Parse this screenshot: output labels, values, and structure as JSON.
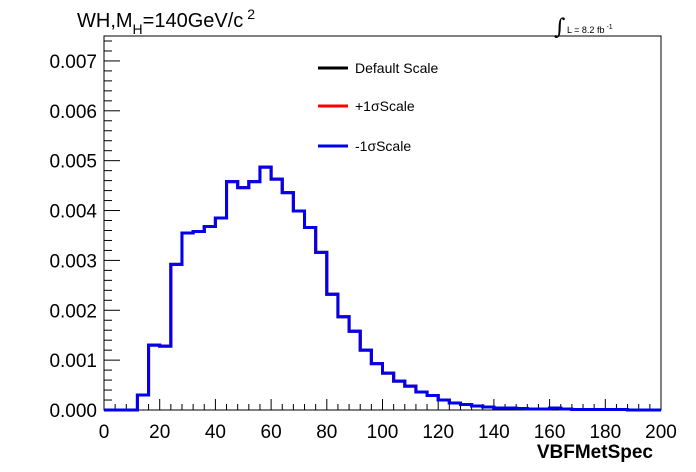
{
  "chart_data": {
    "type": "histogram",
    "title": {
      "main": "WH,M",
      "sub": "H",
      "rest": "=140GeV/c",
      "sup": "2"
    },
    "lumi": {
      "integral": "∫",
      "text": "L = 8.2 fb",
      "sup": "-1"
    },
    "xlabel": "VBFMetSpec",
    "ylabel": "",
    "xlim": [
      0,
      200
    ],
    "ylim": [
      0,
      0.0075
    ],
    "bin_width": 4,
    "x_ticks": [
      "0",
      "20",
      "40",
      "60",
      "80",
      "100",
      "120",
      "140",
      "160",
      "180",
      "200"
    ],
    "y_ticks": [
      "0.000",
      "0.001",
      "0.002",
      "0.003",
      "0.004",
      "0.005",
      "0.006",
      "0.007"
    ],
    "legend_position": "top-center",
    "series": [
      {
        "name": "Default Scale",
        "color": "#000000",
        "values": [
          0,
          0,
          0,
          0.0003,
          0.0013,
          0.00128,
          0.00292,
          0.00355,
          0.00358,
          0.00368,
          0.00385,
          0.00458,
          0.00446,
          0.00458,
          0.00487,
          0.00463,
          0.00436,
          0.00399,
          0.00366,
          0.00316,
          0.00232,
          0.00187,
          0.00158,
          0.0012,
          0.00093,
          0.00074,
          0.00058,
          0.00048,
          0.00036,
          0.00029,
          0.0002,
          0.00014,
          0.00011,
          8e-05,
          6e-05,
          4e-05,
          4e-05,
          3e-05,
          2e-05,
          2e-05,
          4e-05,
          2e-05,
          1e-05,
          1e-05,
          1e-05,
          1e-05,
          1e-05,
          0,
          0,
          0
        ]
      },
      {
        "name": "+1σScale",
        "color": "#ff0000",
        "values": [
          0,
          0,
          0,
          0.0003,
          0.0013,
          0.00128,
          0.00292,
          0.00355,
          0.00358,
          0.00368,
          0.00385,
          0.00458,
          0.00446,
          0.00458,
          0.00487,
          0.00463,
          0.00436,
          0.00399,
          0.00366,
          0.00316,
          0.00232,
          0.00187,
          0.00158,
          0.0012,
          0.00093,
          0.00074,
          0.00058,
          0.00048,
          0.00036,
          0.00029,
          0.0002,
          0.00014,
          0.00011,
          8e-05,
          6e-05,
          4e-05,
          4e-05,
          3e-05,
          2e-05,
          2e-05,
          4e-05,
          2e-05,
          1e-05,
          1e-05,
          1e-05,
          1e-05,
          1e-05,
          0,
          0,
          0
        ]
      },
      {
        "name": "-1σScale",
        "color": "#0000ee",
        "values": [
          0,
          0,
          0,
          0.0003,
          0.0013,
          0.00128,
          0.00292,
          0.00355,
          0.00358,
          0.00368,
          0.00385,
          0.00458,
          0.00446,
          0.00458,
          0.00487,
          0.00463,
          0.00436,
          0.00399,
          0.00366,
          0.00316,
          0.00232,
          0.00187,
          0.00158,
          0.0012,
          0.00093,
          0.00074,
          0.00058,
          0.00048,
          0.00036,
          0.00029,
          0.0002,
          0.00014,
          0.00011,
          8e-05,
          6e-05,
          4e-05,
          4e-05,
          3e-05,
          2e-05,
          2e-05,
          4e-05,
          2e-05,
          1e-05,
          1e-05,
          1e-05,
          1e-05,
          1e-05,
          0,
          0,
          0
        ]
      }
    ]
  }
}
